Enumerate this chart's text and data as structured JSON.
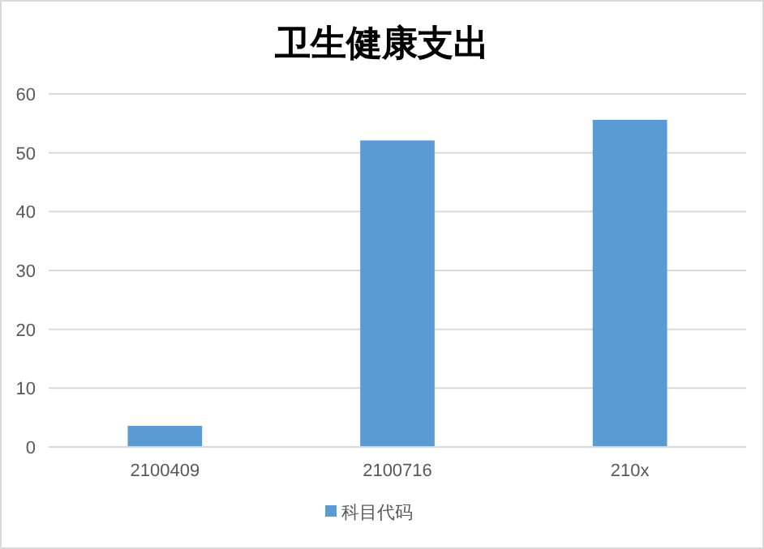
{
  "chart_data": {
    "type": "bar",
    "title": "卫生健康支出",
    "categories": [
      "2100409",
      "2100716",
      "210x"
    ],
    "series": [
      {
        "name": "科目代码",
        "color": "#5b9bd5",
        "values": [
          3.6,
          52.1,
          55.6
        ]
      }
    ],
    "ylim": [
      0,
      60
    ],
    "yticks": [
      0,
      10,
      20,
      30,
      40,
      50,
      60
    ],
    "grid": "y",
    "legend": "bottom"
  }
}
